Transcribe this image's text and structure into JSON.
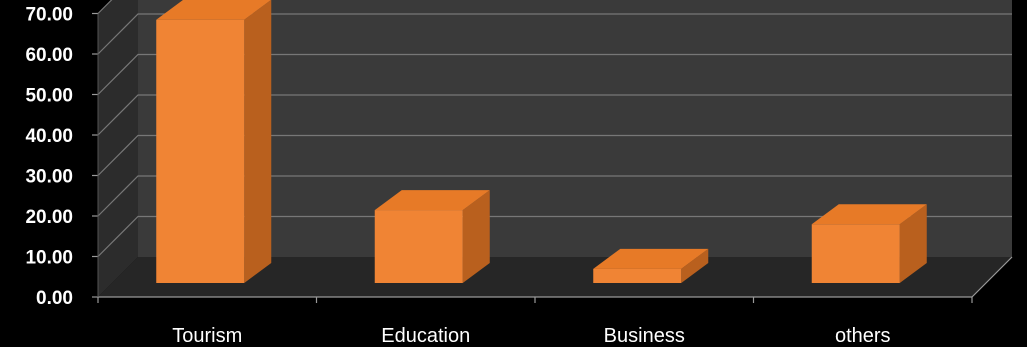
{
  "chart_data": {
    "type": "bar",
    "style": "3d",
    "categories": [
      "Tourism",
      "Education",
      "Business",
      "others"
    ],
    "values": [
      65.0,
      18.0,
      3.5,
      14.5
    ],
    "ylim": [
      0,
      70
    ],
    "ytick_step": 10,
    "ytick_labels": [
      "0.00",
      "10.00",
      "20.00",
      "30.00",
      "40.00",
      "50.00",
      "60.00",
      "70.00"
    ],
    "grid": true,
    "legend": "none",
    "colors": {
      "bar_front": "#F08434",
      "bar_top": "#E77A27",
      "bar_side": "#B9601E",
      "back_wall": "#3A3A3A",
      "side_wall": "#2C2C2C",
      "floor": "#262626",
      "gridline": "#777777",
      "background": "#000000",
      "text": "#FFFFFF"
    }
  }
}
